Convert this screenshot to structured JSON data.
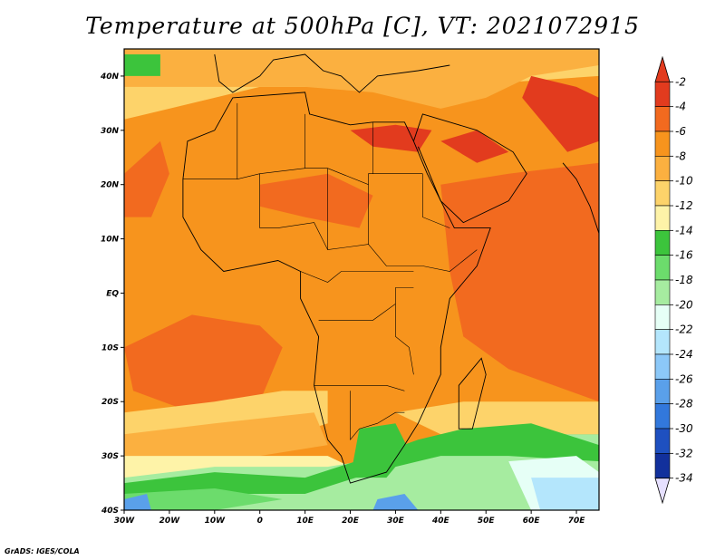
{
  "title": "Temperature at 500hPa [C], VT: 2021072915",
  "credit": "GrADS: IGES/COLA",
  "lon_ticks": [
    "30W",
    "20W",
    "10W",
    "0",
    "10E",
    "20E",
    "30E",
    "40E",
    "50E",
    "60E",
    "70E"
  ],
  "lat_ticks": [
    "40N",
    "30N",
    "20N",
    "10N",
    "EQ",
    "10S",
    "20S",
    "30S",
    "40S"
  ],
  "colorbar": {
    "labels": [
      "-2",
      "-4",
      "-6",
      "-8",
      "-10",
      "-12",
      "-14",
      "-16",
      "-18",
      "-20",
      "-22",
      "-24",
      "-26",
      "-28",
      "-30",
      "-32",
      "-34"
    ],
    "colors": [
      "#e23b1e",
      "#f26a1f",
      "#f7941d",
      "#fbb040",
      "#fdd36a",
      "#fef3a8",
      "#3cc43c",
      "#6cdc6c",
      "#a6eca0",
      "#e6fff6",
      "#b4e6fc",
      "#8cc8f8",
      "#5aa0ea",
      "#3278dc",
      "#1e50c0",
      "#12309c",
      "#0a0a6e"
    ]
  },
  "map_colors": {
    "bg": "#f7941d",
    "warm": "#f26a1f",
    "hot": "#e23b1e",
    "mild": "#fbb040",
    "cool": "#fdd36a",
    "pale": "#fef3a8",
    "green": "#3cc43c",
    "lightgreen": "#6cdc6c",
    "palegreen": "#a6eca0",
    "cyan": "#e6fff6",
    "lightblue": "#b4e6fc",
    "blue": "#5aa0ea"
  }
}
